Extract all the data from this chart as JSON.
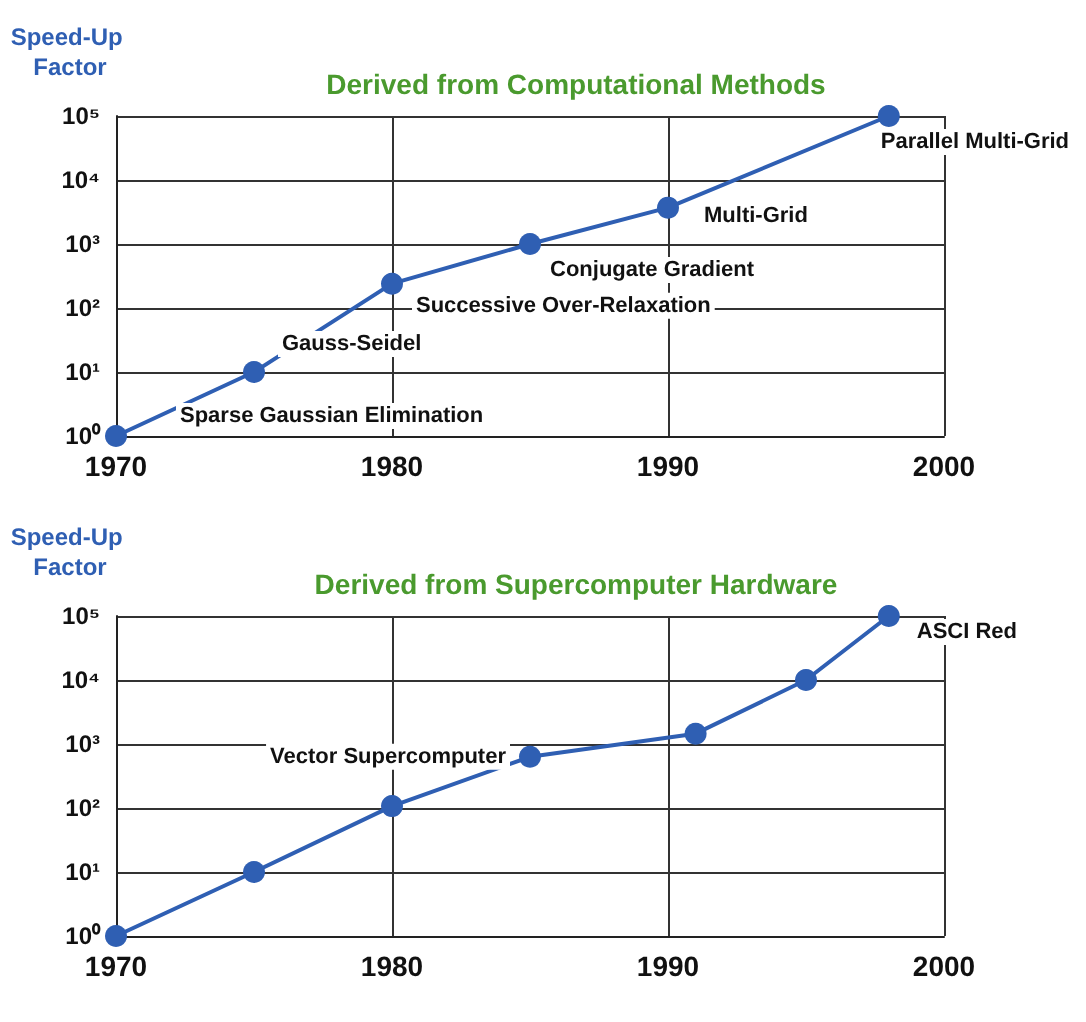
{
  "chart_data": [
    {
      "type": "line",
      "title": "Derived from Computational Methods",
      "ylabel": "Speed-Up Factor",
      "x": [
        1970,
        1975,
        1980,
        1985,
        1990,
        1998
      ],
      "series": [
        {
          "color": "#2f5fb3",
          "values": [
            1,
            10,
            240,
            1000,
            3700,
            100000
          ]
        }
      ],
      "log": "y",
      "xlim": [
        1970,
        2000
      ],
      "xticks": [
        1970,
        1980,
        1990,
        2000
      ],
      "ylim": [
        1,
        100000
      ],
      "yticks": [
        {
          "value": 1,
          "label": "10⁰"
        },
        {
          "value": 10,
          "label": "10¹"
        },
        {
          "value": 100,
          "label": "10²"
        },
        {
          "value": 1000,
          "label": "10³"
        },
        {
          "value": 10000,
          "label": "10⁴"
        },
        {
          "value": 100000,
          "label": "10⁵"
        }
      ],
      "grid": true,
      "marker": "circle",
      "line_style": "solid",
      "annotations": [
        {
          "text": "Sparse Gaussian Elimination",
          "x": 1970,
          "y": 1
        },
        {
          "text": "Gauss-Seidel",
          "x": 1975,
          "y": 10
        },
        {
          "text": "Successive Over-Relaxation",
          "x": 1980,
          "y": 240
        },
        {
          "text": "Conjugate Gradient",
          "x": 1985,
          "y": 1000
        },
        {
          "text": "Multi-Grid",
          "x": 1990,
          "y": 3700
        },
        {
          "text": "Parallel Multi-Grid",
          "x": 1998,
          "y": 100000
        }
      ]
    },
    {
      "type": "line",
      "title": "Derived from Supercomputer Hardware",
      "ylabel": "Speed-Up Factor",
      "x": [
        1970,
        1975,
        1980,
        1985,
        1991,
        1995,
        1998
      ],
      "series": [
        {
          "color": "#2f5fb3",
          "values": [
            1,
            10,
            107,
            630,
            1450,
            10000,
            100000
          ]
        }
      ],
      "log": "y",
      "xlim": [
        1970,
        2000
      ],
      "xticks": [
        1970,
        1980,
        1990,
        2000
      ],
      "ylim": [
        1,
        100000
      ],
      "yticks": [
        {
          "value": 1,
          "label": "10⁰"
        },
        {
          "value": 10,
          "label": "10¹"
        },
        {
          "value": 100,
          "label": "10²"
        },
        {
          "value": 1000,
          "label": "10³"
        },
        {
          "value": 10000,
          "label": "10⁴"
        },
        {
          "value": 100000,
          "label": "10⁵"
        }
      ],
      "grid": true,
      "marker": "circle",
      "line_style": "solid",
      "annotations": [
        {
          "text": "Vector Supercomputer",
          "x": 1985,
          "y": 630
        },
        {
          "text": "ASCI Red",
          "x": 1998,
          "y": 100000
        }
      ]
    }
  ]
}
